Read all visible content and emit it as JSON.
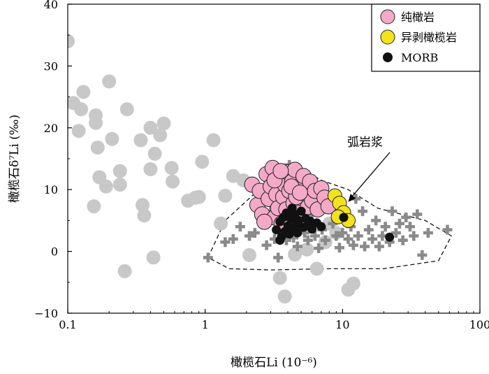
{
  "chart_data": {
    "type": "scatter",
    "x_scale": "log",
    "xlim": [
      0.1,
      100
    ],
    "ylim": [
      -10,
      40
    ],
    "x_tick_values": [
      0.1,
      1,
      10,
      100
    ],
    "x_tick_labels": [
      "0.1",
      "1",
      "10",
      "100"
    ],
    "y_tick_values": [
      -10,
      0,
      10,
      20,
      30,
      40
    ],
    "y_tick_labels": [
      "−10",
      "0",
      "10",
      "20",
      "30",
      "40"
    ],
    "xlabel": "橄榄石Li (10⁻⁶)",
    "ylabel": "橄榄石δ⁷Li (‰)",
    "grid": false,
    "legend_position": "top-right",
    "legend": [
      {
        "label": "纯橄岩",
        "color": "#f4a9c8"
      },
      {
        "label": "异剥橄榄岩",
        "color": "#f2e31e"
      },
      {
        "label": "MORB",
        "color": "#111111"
      }
    ],
    "annotation": {
      "text": "弧岩浆",
      "arrow_to": [
        11,
        8
      ]
    },
    "region_outline": {
      "label": "弧岩浆",
      "style": "dashed",
      "points": [
        [
          1.05,
          -1
        ],
        [
          1.4,
          5
        ],
        [
          2.2,
          9
        ],
        [
          3.5,
          11.5
        ],
        [
          4.5,
          14
        ],
        [
          7,
          11.5
        ],
        [
          11,
          10
        ],
        [
          18,
          7
        ],
        [
          40,
          5
        ],
        [
          62,
          2.5
        ],
        [
          50,
          -1.5
        ],
        [
          20,
          -2.8
        ],
        [
          8,
          -2.8
        ],
        [
          3,
          -3
        ],
        [
          1.5,
          -2.8
        ],
        [
          1.05,
          -1
        ]
      ]
    },
    "series": [
      {
        "name": "",
        "marker": "circle",
        "color": "#c8c8c8",
        "points": [
          [
            0.1,
            34
          ],
          [
            0.11,
            24
          ],
          [
            0.12,
            19.5
          ],
          [
            0.125,
            23
          ],
          [
            0.13,
            25.8
          ],
          [
            0.16,
            22
          ],
          [
            0.16,
            20.8
          ],
          [
            0.165,
            16.8
          ],
          [
            0.155,
            7.3
          ],
          [
            0.17,
            12
          ],
          [
            0.19,
            10.5
          ],
          [
            0.2,
            27.5
          ],
          [
            0.21,
            18.2
          ],
          [
            0.24,
            13
          ],
          [
            0.24,
            10.8
          ],
          [
            0.27,
            23
          ],
          [
            0.26,
            -3.2
          ],
          [
            0.34,
            18
          ],
          [
            0.35,
            7.5
          ],
          [
            0.36,
            5.8
          ],
          [
            0.4,
            20
          ],
          [
            0.4,
            13.3
          ],
          [
            0.42,
            -1
          ],
          [
            0.43,
            15.8
          ],
          [
            0.47,
            18.8
          ],
          [
            0.5,
            20.7
          ],
          [
            0.57,
            13.5
          ],
          [
            0.58,
            11.3
          ],
          [
            0.75,
            8.2
          ],
          [
            0.85,
            8.7
          ],
          [
            0.9,
            8.8
          ],
          [
            0.95,
            14.5
          ],
          [
            1.15,
            18
          ],
          [
            1.3,
            4.5
          ],
          [
            1.4,
            9
          ],
          [
            1.6,
            12.2
          ],
          [
            1.9,
            11.5
          ],
          [
            2.1,
            -0.6
          ],
          [
            3.5,
            -4.3
          ],
          [
            3.8,
            -7.3
          ],
          [
            4.5,
            -0.5
          ],
          [
            5.5,
            0.3
          ],
          [
            6.5,
            -2.8
          ],
          [
            7.5,
            1.5
          ],
          [
            11,
            -6.2
          ],
          [
            12,
            -5.2
          ],
          [
            8,
            4.5
          ],
          [
            9,
            3
          ]
        ]
      },
      {
        "name": "",
        "marker": "plus",
        "color": "#8a8a8a",
        "points": [
          [
            1.05,
            -1
          ],
          [
            1.4,
            1.5
          ],
          [
            1.6,
            2
          ],
          [
            1.8,
            4
          ],
          [
            2.1,
            2.5
          ],
          [
            2.3,
            3
          ],
          [
            2.6,
            5
          ],
          [
            2.8,
            1
          ],
          [
            3,
            6.5
          ],
          [
            3.2,
            2
          ],
          [
            3.4,
            -1
          ],
          [
            3.6,
            4
          ],
          [
            3.9,
            1.8
          ],
          [
            4.1,
            3.5
          ],
          [
            4.4,
            2.2
          ],
          [
            4.7,
            0.8
          ],
          [
            5,
            5
          ],
          [
            5.3,
            3
          ],
          [
            5.6,
            1.8
          ],
          [
            6,
            6
          ],
          [
            6.3,
            2.5
          ],
          [
            6.7,
            0.5
          ],
          [
            7.1,
            3.5
          ],
          [
            7.5,
            1.8
          ],
          [
            8,
            7.3
          ],
          [
            8.5,
            4.5
          ],
          [
            9,
            2.5
          ],
          [
            9.5,
            0.6
          ],
          [
            10,
            3
          ],
          [
            10.5,
            6
          ],
          [
            11,
            2
          ],
          [
            11.5,
            4
          ],
          [
            12,
            1
          ],
          [
            12.5,
            8.5
          ],
          [
            13,
            2.5
          ],
          [
            14,
            6.5
          ],
          [
            14.5,
            0.8
          ],
          [
            15.5,
            3.5
          ],
          [
            16.5,
            2
          ],
          [
            17.5,
            5
          ],
          [
            18.5,
            0.8
          ],
          [
            19.5,
            2.5
          ],
          [
            20.5,
            4
          ],
          [
            22,
            1.5
          ],
          [
            23,
            6.5
          ],
          [
            24.5,
            3
          ],
          [
            26,
            4.5
          ],
          [
            27.5,
            1.8
          ],
          [
            29,
            5.5
          ],
          [
            31,
            4
          ],
          [
            33,
            2.5
          ],
          [
            35,
            6
          ],
          [
            38,
            -0.6
          ],
          [
            42,
            3
          ],
          [
            58,
            3.5
          ],
          [
            4.1,
            14
          ]
        ]
      },
      {
        "name": "纯橄岩",
        "marker": "circle",
        "color": "#f4a9c8",
        "points": [
          [
            2.2,
            10.8
          ],
          [
            2.4,
            7.5
          ],
          [
            2.5,
            9.8
          ],
          [
            2.6,
            6
          ],
          [
            2.8,
            12.5
          ],
          [
            2.9,
            8.5
          ],
          [
            3,
            10.5
          ],
          [
            3.1,
            13.5
          ],
          [
            3.2,
            5.5
          ],
          [
            3.3,
            9.2
          ],
          [
            3.4,
            7
          ],
          [
            3.5,
            11.8
          ],
          [
            3.6,
            4.5
          ],
          [
            3.7,
            8.8
          ],
          [
            3.8,
            10.8
          ],
          [
            3.9,
            6.8
          ],
          [
            4,
            12.8
          ],
          [
            4.1,
            9.8
          ],
          [
            4.2,
            5.3
          ],
          [
            4.3,
            11.3
          ],
          [
            4.4,
            7.8
          ],
          [
            4.5,
            13.2
          ],
          [
            4.6,
            8.8
          ],
          [
            4.8,
            6.2
          ],
          [
            5,
            10.8
          ],
          [
            5.2,
            12.2
          ],
          [
            5.4,
            9.3
          ],
          [
            5.6,
            7.2
          ],
          [
            5.8,
            11.3
          ],
          [
            6,
            8.2
          ],
          [
            6.3,
            9.8
          ],
          [
            6.6,
            6.8
          ],
          [
            7,
            10.2
          ],
          [
            7.4,
            8.7
          ],
          [
            7.9,
            7.3
          ],
          [
            2.7,
            4.8
          ],
          [
            3.2,
            11.5
          ],
          [
            3.55,
            13
          ],
          [
            4.25,
            10.5
          ],
          [
            4.9,
            9.5
          ]
        ]
      },
      {
        "name": "异剥橄榄岩",
        "marker": "circle",
        "color": "#f2e31e",
        "points": [
          [
            8.8,
            9
          ],
          [
            9.5,
            7.8
          ],
          [
            10.2,
            6.3
          ],
          [
            11,
            5
          ],
          [
            9.3,
            5.6
          ]
        ]
      },
      {
        "name": "MORB",
        "marker": "circle",
        "color": "#111111",
        "points": [
          [
            3.3,
            3.5
          ],
          [
            3.5,
            4.8
          ],
          [
            3.6,
            2.4
          ],
          [
            3.7,
            5.5
          ],
          [
            3.8,
            3.2
          ],
          [
            3.9,
            6.2
          ],
          [
            4,
            4.1
          ],
          [
            4.1,
            2.8
          ],
          [
            4.2,
            5.3
          ],
          [
            4.3,
            7
          ],
          [
            4.4,
            3.6
          ],
          [
            4.5,
            6
          ],
          [
            4.6,
            4.6
          ],
          [
            4.7,
            3
          ],
          [
            4.8,
            5
          ],
          [
            4.9,
            4
          ],
          [
            5,
            6.5
          ],
          [
            5.2,
            3.9
          ],
          [
            5.4,
            5.3
          ],
          [
            5.6,
            4.1
          ],
          [
            5.8,
            4.9
          ],
          [
            6,
            3.6
          ],
          [
            6.5,
            4.6
          ],
          [
            7,
            4
          ],
          [
            3.5,
            1.8
          ],
          [
            10.2,
            5.5
          ],
          [
            22,
            2.3
          ]
        ]
      }
    ]
  }
}
